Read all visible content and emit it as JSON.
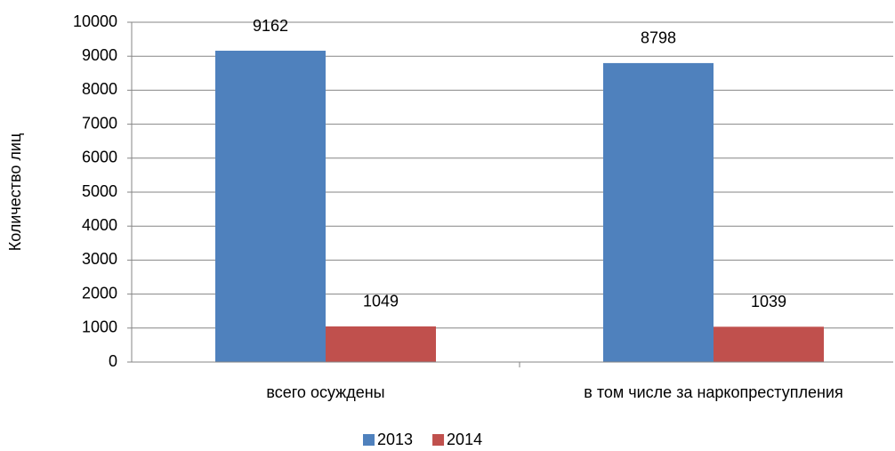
{
  "chart_data": {
    "type": "bar",
    "ylabel": "Количество лиц",
    "categories": [
      "всего осуждены",
      "в том числе за наркопреступления"
    ],
    "series": [
      {
        "name": "2013",
        "color": "#4f81bd",
        "values": [
          9162,
          8798
        ]
      },
      {
        "name": "2014",
        "color": "#c0504d",
        "values": [
          1049,
          1039
        ]
      }
    ],
    "ylim": [
      0,
      10000
    ],
    "yticks": [
      0,
      1000,
      2000,
      3000,
      4000,
      5000,
      6000,
      7000,
      8000,
      9000,
      10000
    ],
    "grid": true,
    "legend": "bottom"
  }
}
